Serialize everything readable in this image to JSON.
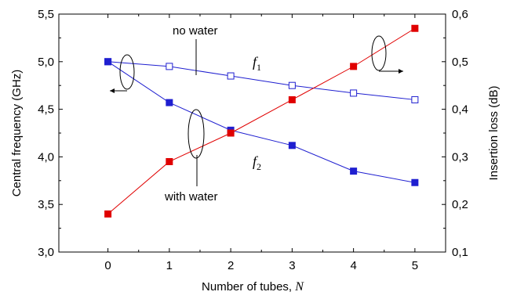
{
  "chart_data": {
    "type": "line",
    "x": [
      0,
      1,
      2,
      3,
      4,
      5
    ],
    "xlabel": "Number of tubes,",
    "xlabel_var": "N",
    "ylabel_left": "Central frequency (GHz)",
    "ylabel_right": "Insertion loss  (dB)",
    "xlim": [
      -0.8,
      5.5
    ],
    "ylim_left": [
      3.0,
      5.5
    ],
    "ylim_right": [
      0.1,
      0.6
    ],
    "x_ticks": [
      0,
      1,
      2,
      3,
      4,
      5
    ],
    "x_tick_labels": [
      "0",
      "1",
      "2",
      "3",
      "4",
      "5"
    ],
    "y_left_ticks": [
      3.0,
      3.5,
      4.0,
      4.5,
      5.0,
      5.5
    ],
    "y_left_tick_labels": [
      "3,0",
      "3,5",
      "4,0",
      "4,5",
      "5,0",
      "5,5"
    ],
    "y_right_ticks": [
      0.1,
      0.2,
      0.3,
      0.4,
      0.5,
      0.6
    ],
    "y_right_tick_labels": [
      "0,1",
      "0,2",
      "0,3",
      "0,4",
      "0,5",
      "0,6"
    ],
    "grid": false,
    "series": [
      {
        "label": "f1",
        "axis": "left",
        "marker": "open-square",
        "values": [
          5.0,
          4.95,
          4.85,
          4.75,
          4.67,
          4.6
        ]
      },
      {
        "label": "f2",
        "axis": "left",
        "marker": "filled-square",
        "values": [
          5.0,
          4.57,
          4.28,
          4.12,
          3.85,
          3.73
        ]
      },
      {
        "label": "insertion loss",
        "axis": "right",
        "marker": "filled-square",
        "values": [
          0.18,
          0.29,
          0.35,
          0.42,
          0.49,
          0.57
        ]
      }
    ],
    "annotations": {
      "no_water": "no water",
      "with_water": "with water",
      "f1_var": "f",
      "f1_sub": "1",
      "f2_var": "f",
      "f2_sub": "2"
    }
  },
  "colors": {
    "frequency_line": "#1f1fd0",
    "frequency_marker": "#1f1fd0",
    "loss_line": "#e00000",
    "loss_marker": "#e00000"
  }
}
